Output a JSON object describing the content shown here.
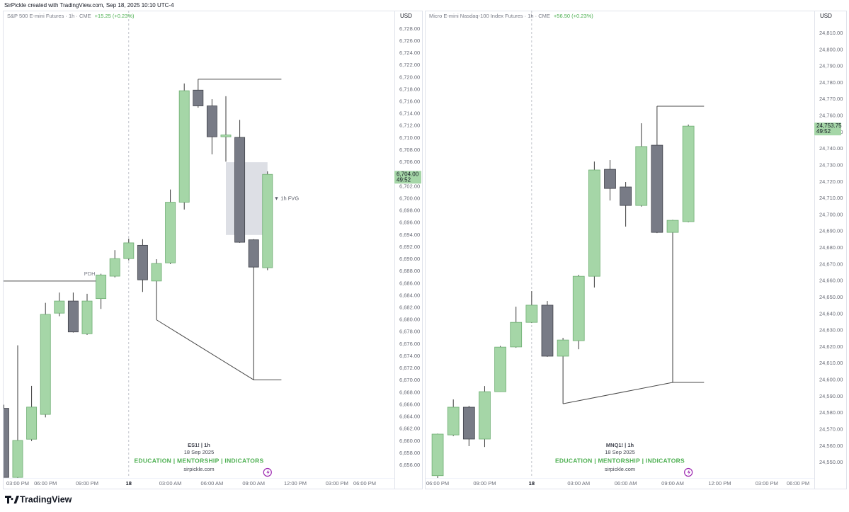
{
  "header": {
    "credit": "SirPickle created with TradingView.com, Sep 18, 2025 10:10 UTC-4"
  },
  "footer": {
    "brand": "TradingView"
  },
  "chart_data": [
    {
      "type": "candlestick",
      "title": "S&P 500 E-mini Futures · 1h · CME",
      "change": "+15.25 (+0.23%)",
      "currency": "USD",
      "categories": [
        null,
        "03:00 PM",
        null,
        "06:00 PM",
        null,
        null,
        "09:00 PM",
        null,
        null,
        "18",
        null,
        null,
        "03:00 AM",
        null,
        null,
        "06:00 AM",
        null,
        null,
        "09:00 AM",
        null,
        null,
        "12:00 PM",
        null,
        null,
        "03:00 PM",
        null,
        "06:00 PM",
        null
      ],
      "open": [
        6665.4,
        6654,
        6660.3,
        6664.4,
        6681.1,
        6683.1,
        6677.7,
        6683.5,
        6687.2,
        6690.1,
        6692.3,
        6686.4,
        6689.4,
        6699.4,
        6717.9,
        6715.3,
        6710.2,
        6710.1,
        6693.2,
        6688.6,
        null,
        null,
        null,
        null,
        null,
        null,
        null,
        null
      ],
      "high": [
        6666,
        6675.8,
        6669.1,
        6682.8,
        6684.5,
        6684.5,
        6684.3,
        6687.6,
        6691.5,
        6693.4,
        6693.3,
        6690.0,
        6701.5,
        6719.0,
        6719.7,
        6716.4,
        6716.9,
        6713.0,
        6693.3,
        6704.5,
        null,
        null,
        null,
        null,
        null,
        null,
        null,
        null
      ],
      "low": [
        6654,
        6653,
        6660,
        6663.9,
        6680.6,
        6677.9,
        6677.5,
        6681.8,
        6687,
        6689.8,
        6684.6,
        6680.0,
        6689.2,
        6698.2,
        6715,
        6707.3,
        6706.1,
        6692.7,
        6670.1,
        6688.2,
        null,
        null,
        null,
        null,
        null,
        null,
        null,
        null
      ],
      "close": [
        6654,
        6660.1,
        6665.6,
        6680.9,
        6683.1,
        6678.0,
        6683.1,
        6687.4,
        6690.1,
        6692.7,
        6686.6,
        6689.3,
        6699.4,
        6717.8,
        6715.3,
        6710.2,
        6710.5,
        6692.8,
        6688.7,
        6704,
        null,
        null,
        null,
        null,
        null,
        null,
        null,
        null
      ],
      "up_color": "#a5d6a7",
      "down_color": "#787b86",
      "ylim": [
        6653.9,
        6730.9
      ],
      "yticks": [
        {
          "value": 6656,
          "label": "6,656.00"
        },
        {
          "value": 6658,
          "label": "6,658.00"
        },
        {
          "value": 6660,
          "label": "6,660.00"
        },
        {
          "value": 6662,
          "label": "6,662.00"
        },
        {
          "value": 6664,
          "label": "6,664.00"
        },
        {
          "value": 6666,
          "label": "6,666.00"
        },
        {
          "value": 6668,
          "label": "6,668.00"
        },
        {
          "value": 6670,
          "label": "6,670.00"
        },
        {
          "value": 6672,
          "label": "6,672.00"
        },
        {
          "value": 6674,
          "label": "6,674.00"
        },
        {
          "value": 6676,
          "label": "6,676.00"
        },
        {
          "value": 6678,
          "label": "6,678.00"
        },
        {
          "value": 6680,
          "label": "6,680.00"
        },
        {
          "value": 6682,
          "label": "6,682.00"
        },
        {
          "value": 6684,
          "label": "6,684.00"
        },
        {
          "value": 6686,
          "label": "6,686.00"
        },
        {
          "value": 6688,
          "label": "6,688.00"
        },
        {
          "value": 6690,
          "label": "6,690.00"
        },
        {
          "value": 6692,
          "label": "6,692.00"
        },
        {
          "value": 6694,
          "label": "6,694.00"
        },
        {
          "value": 6696,
          "label": "6,696.00"
        },
        {
          "value": 6698,
          "label": "6,698.00"
        },
        {
          "value": 6700,
          "label": "6,700.00"
        },
        {
          "value": 6702,
          "label": "6,702.00"
        },
        {
          "value": 6704,
          "label": "6,704.00"
        },
        {
          "value": 6706,
          "label": "6,706.00"
        },
        {
          "value": 6708,
          "label": "6,708.00"
        },
        {
          "value": 6710,
          "label": "6,710.00"
        },
        {
          "value": 6712,
          "label": "6,712.00"
        },
        {
          "value": 6714,
          "label": "6,714.00"
        },
        {
          "value": 6716,
          "label": "6,716.00"
        },
        {
          "value": 6718,
          "label": "6,718.00"
        },
        {
          "value": 6720,
          "label": "6,720.00"
        },
        {
          "value": 6722,
          "label": "6,722.00"
        },
        {
          "value": 6724,
          "label": "6,724.00"
        },
        {
          "value": 6726,
          "label": "6,726.00"
        },
        {
          "value": 6728,
          "label": "6,728.00"
        }
      ],
      "last_price": {
        "value": 6704,
        "label": "6,704.00"
      },
      "countdown": "49:52",
      "pdh": {
        "label": "PDH",
        "value": 6686.4
      },
      "fvg": {
        "label": "▼ 1h FVG",
        "top": 6706,
        "bottom": 6694
      },
      "watermark": {
        "symbol": "ES1!  |  1h",
        "date": "18 Sep 2025",
        "tagline": "EDUCATION  |  MENTORSHIP  |  INDICATORS",
        "site": "sirpickle.com"
      }
    },
    {
      "type": "candlestick",
      "title": "Micro E-mini Nasdaq-100 Index Futures · 1h · CME",
      "change": "+56.50 (+0.23%)",
      "currency": "USD",
      "categories": [
        "06:00 PM",
        null,
        null,
        "09:00 PM",
        null,
        null,
        "18",
        null,
        null,
        "03:00 AM",
        null,
        null,
        "06:00 AM",
        null,
        null,
        "09:00 AM",
        null,
        null,
        "12:00 PM",
        null,
        null,
        "03:00 PM",
        null,
        "06:00 PM"
      ],
      "open": [
        24542,
        24566.7,
        24583.5,
        24564.2,
        24592.9,
        24620,
        24634.9,
        24645.3,
        24614.4,
        24623.8,
        24662.8,
        24727.6,
        24716.9,
        24705.7,
        24742.2,
        24689.4,
        24695.9,
        null,
        null,
        null,
        null,
        null,
        null,
        null
      ],
      "high": [
        24567.5,
        24588.2,
        24584.3,
        24596.3,
        24620.6,
        24644.4,
        24653.8,
        24647.8,
        24625.5,
        24663.7,
        24732.3,
        24733.2,
        24719.9,
        24755.5,
        24765.8,
        24697,
        24754.7,
        null,
        null,
        null,
        null,
        null,
        null,
        null
      ],
      "low": [
        24540,
        24566,
        24559.9,
        24559.4,
        24592.9,
        24619.5,
        24634.5,
        24614,
        24585.6,
        24618.6,
        24656,
        24708.7,
        24692.9,
        24705,
        24689,
        24598.5,
        24695.5,
        null,
        null,
        null,
        null,
        null,
        null,
        null
      ],
      "close": [
        24567.2,
        24583.5,
        24564.2,
        24592.9,
        24619.9,
        24634.9,
        24645.3,
        24614.4,
        24624.2,
        24662.8,
        24727.2,
        24716.0,
        24705.7,
        24741.4,
        24689.4,
        24696.7,
        24753.75,
        null,
        null,
        null,
        null,
        null,
        null,
        null
      ],
      "up_color": "#a5d6a7",
      "down_color": "#787b86",
      "ylim": [
        24540.6,
        24823.3
      ],
      "yticks": [
        {
          "value": 24550,
          "label": "24,550.00"
        },
        {
          "value": 24560,
          "label": "24,560.00"
        },
        {
          "value": 24570,
          "label": "24,570.00"
        },
        {
          "value": 24580,
          "label": "24,580.00"
        },
        {
          "value": 24590,
          "label": "24,590.00"
        },
        {
          "value": 24600,
          "label": "24,600.00"
        },
        {
          "value": 24610,
          "label": "24,610.00"
        },
        {
          "value": 24620,
          "label": "24,620.00"
        },
        {
          "value": 24630,
          "label": "24,630.00"
        },
        {
          "value": 24640,
          "label": "24,640.00"
        },
        {
          "value": 24650,
          "label": "24,650.00"
        },
        {
          "value": 24660,
          "label": "24,660.00"
        },
        {
          "value": 24670,
          "label": "24,670.00"
        },
        {
          "value": 24680,
          "label": "24,680.00"
        },
        {
          "value": 24690,
          "label": "24,690.00"
        },
        {
          "value": 24700,
          "label": "24,700.00"
        },
        {
          "value": 24710,
          "label": "24,710.00"
        },
        {
          "value": 24720,
          "label": "24,720.00"
        },
        {
          "value": 24730,
          "label": "24,730.00"
        },
        {
          "value": 24740,
          "label": "24,740.00"
        },
        {
          "value": 24750,
          "label": "24,750.00"
        },
        {
          "value": 24760,
          "label": "24,760.00"
        },
        {
          "value": 24770,
          "label": "24,770.00"
        },
        {
          "value": 24780,
          "label": "24,780.00"
        },
        {
          "value": 24790,
          "label": "24,790.00"
        },
        {
          "value": 24800,
          "label": "24,800.00"
        },
        {
          "value": 24810,
          "label": "24,810.00"
        }
      ],
      "last_price": {
        "value": 24753.75,
        "label": "24,753.75"
      },
      "countdown": "49:52",
      "watermark": {
        "symbol": "MNQ1!  |  1h",
        "date": "18 Sep 2025",
        "tagline": "EDUCATION  |  MENTORSHIP  |  INDICATORS",
        "site": "sirpickle.com"
      }
    }
  ]
}
